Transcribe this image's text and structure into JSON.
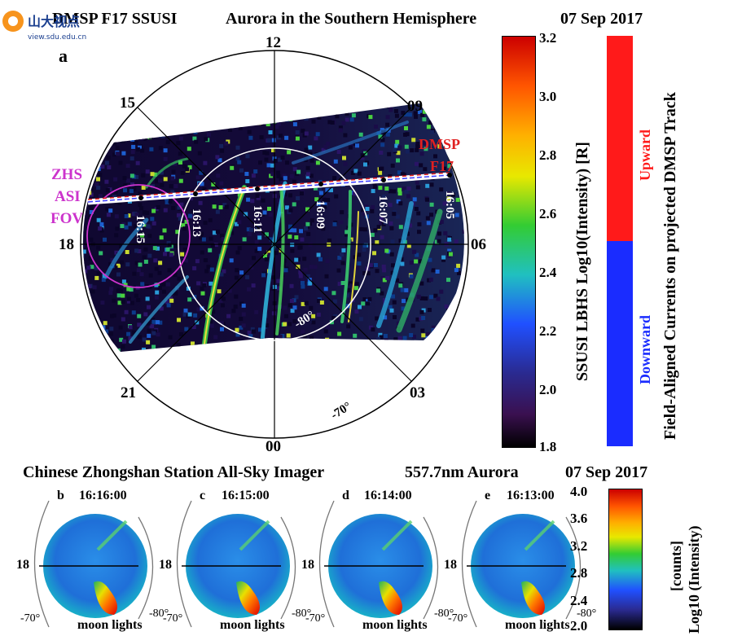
{
  "top_panel": {
    "title_left": "DMSP F17 SSUSI",
    "title_center": "Aurora in the Southern Hemisphere",
    "title_date": "07 Sep 2017",
    "panel_label": "a",
    "mlt_labels": [
      "12",
      "15",
      "09",
      "18",
      "06",
      "21",
      "03",
      "00"
    ],
    "lat_labels": [
      "-80°",
      "-70°"
    ],
    "track_label_line1": "DMSP",
    "track_label_line2": "F17",
    "time_labels": [
      "16:15",
      "16:13",
      "16:11",
      "16:09",
      "16:07",
      "16:05"
    ],
    "fov_label_lines": [
      "ZHS",
      "ASI",
      "FOV"
    ],
    "colorbar_ticks": [
      "3.2",
      "3.0",
      "2.8",
      "2.6",
      "2.4",
      "2.2",
      "2.0",
      "1.8"
    ],
    "colorbar_label": "SSUSI LBHS Log10(Intensity) [R]",
    "fac_upward": "Upward",
    "fac_downward": "Downward",
    "fac_label": "Field-Aligned Currents on projected DMSP Track",
    "colors": {
      "upward": "#ff1a1a",
      "downward": "#1a2cff",
      "track": "#e02020",
      "fov": "#cc33cc"
    }
  },
  "bottom_panel": {
    "title_left": "Chinese Zhongshan Station All-Sky Imager",
    "title_center": "557.7nm Aurora",
    "title_date": "07 Sep 2017",
    "frames": [
      {
        "label": "b",
        "time": "16:16:00"
      },
      {
        "label": "c",
        "time": "16:15:00"
      },
      {
        "label": "d",
        "time": "16:14:00"
      },
      {
        "label": "e",
        "time": "16:13:00"
      }
    ],
    "mlt_label": "18",
    "lat_labels": [
      "-70°",
      "-80°"
    ],
    "moon_label": "moon lights",
    "colorbar_ticks": [
      "4.0",
      "3.6",
      "3.2",
      "2.8",
      "2.4",
      "2.0"
    ],
    "colorbar_label_1": "Log10 (Intensity)",
    "colorbar_label_2": "[counts]"
  },
  "watermark": {
    "text": "山大视点",
    "url_text": "view.sdu.edu.cn"
  }
}
